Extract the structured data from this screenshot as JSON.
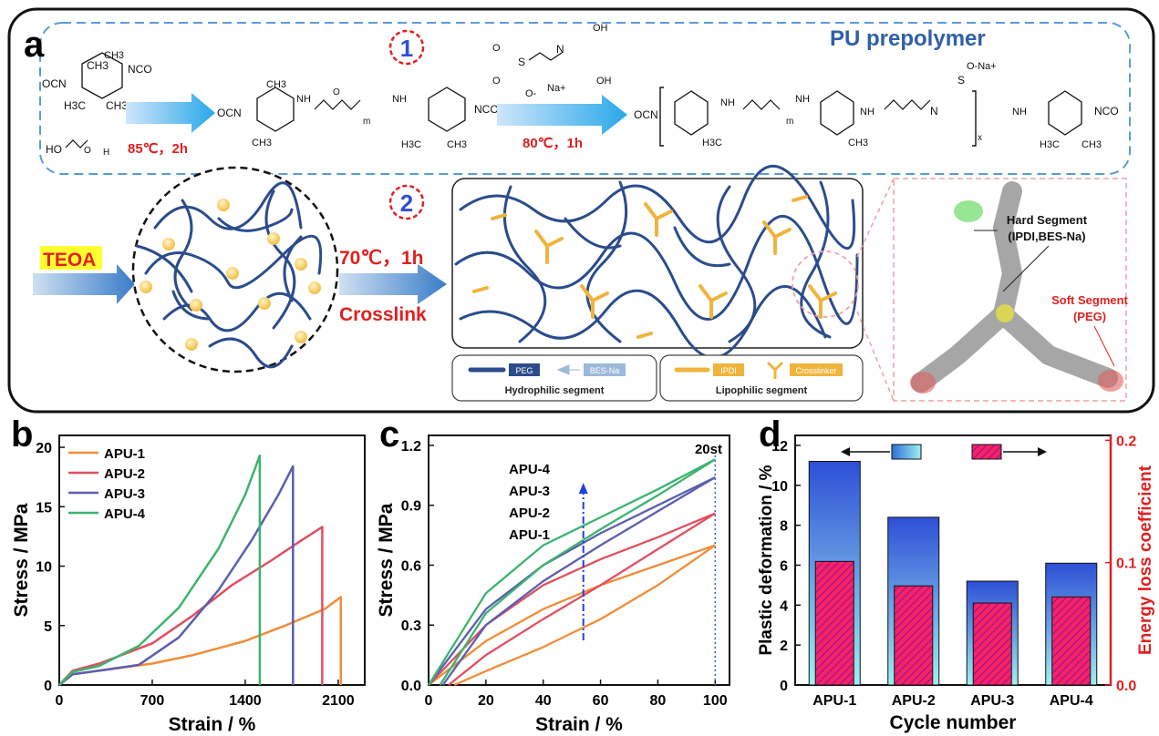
{
  "scheme": {
    "panel_label": "a",
    "step1_label": "1",
    "step2_label": "2",
    "prepolymer_title": "PU prepolymer",
    "step1_condition_a": "85℃，2h",
    "step1_condition_b": "80℃，1h",
    "teoa_label": "TEOA",
    "step2_condition": "70℃，1h",
    "crosslink_label": "Crosslink",
    "legend_peg": "PEG",
    "legend_besna": "BES-Na",
    "legend_ipdi": "IPDI",
    "legend_crosslinker": "Crosslinker",
    "hydrophilic_label": "Hydrophilic segment",
    "lipophilic_label": "Lipophilic segment",
    "hard_segment": "Hard Segment",
    "hard_segment_detail": "(IPDI,BES-Na)",
    "soft_segment": "Soft Segment",
    "soft_segment_detail": "(PEG)",
    "chem": {
      "nco": "NCO",
      "ocn": "OCN",
      "ch3": "CH3",
      "h3c": "H3C",
      "nh": "NH",
      "n": "N",
      "o": "O",
      "oh": "OH",
      "ho": "HO",
      "h": "H",
      "s": "S",
      "na": "Na+",
      "ona": "O-Na+",
      "o_minus": "O-",
      "m": "m",
      "x": "x"
    },
    "colors": {
      "peg": "#2b4c8c",
      "ipdi": "#f0b43c",
      "besna": "#9cb9d9",
      "red": "#e02020",
      "blue_title": "#2f5fa8"
    }
  },
  "chart_data": [
    {
      "panel": "b",
      "type": "line",
      "xlabel": "Strain / %",
      "ylabel": "Stress / MPa",
      "xlim": [
        0,
        2300
      ],
      "ylim": [
        0,
        21
      ],
      "xticks": [
        "0",
        "700",
        "1400",
        "2100"
      ],
      "yticks": [
        "0",
        "5",
        "10",
        "15",
        "20"
      ],
      "legend_position": "top-left",
      "series": [
        {
          "name": "APU-1",
          "color": "#f28c38",
          "x": [
            0,
            100,
            300,
            700,
            1000,
            1400,
            1700,
            2000,
            2120,
            2120
          ],
          "y": [
            0,
            0.9,
            1.2,
            1.8,
            2.5,
            3.7,
            5.0,
            6.4,
            7.4,
            0
          ]
        },
        {
          "name": "APU-2",
          "color": "#e05060",
          "x": [
            0,
            100,
            300,
            700,
            1000,
            1300,
            1600,
            1800,
            1980,
            1980
          ],
          "y": [
            0,
            1.2,
            1.8,
            3.5,
            5.8,
            8.4,
            10.5,
            12.0,
            13.3,
            0
          ]
        },
        {
          "name": "APU-3",
          "color": "#5b5fb0",
          "x": [
            0,
            100,
            300,
            600,
            900,
            1200,
            1450,
            1650,
            1760,
            1760
          ],
          "y": [
            0,
            0.9,
            1.2,
            1.7,
            4.0,
            8.0,
            12.2,
            16.0,
            18.4,
            0
          ]
        },
        {
          "name": "APU-4",
          "color": "#3cb46e",
          "x": [
            0,
            100,
            300,
            600,
            900,
            1200,
            1400,
            1510,
            1510
          ],
          "y": [
            0,
            1.1,
            1.6,
            3.3,
            6.5,
            11.5,
            16.0,
            19.3,
            0
          ]
        }
      ]
    },
    {
      "panel": "c",
      "type": "line",
      "xlabel": "Strain / %",
      "ylabel": "Stress / MPa",
      "xlim": [
        0,
        105
      ],
      "ylim": [
        0,
        1.25
      ],
      "xticks": [
        "0",
        "20",
        "40",
        "60",
        "80",
        "100"
      ],
      "yticks": [
        "0.0",
        "0.3",
        "0.6",
        "0.9",
        "1.2"
      ],
      "annotation": "20st",
      "arrow_labels": [
        "APU-4",
        "APU-3",
        "APU-2",
        "APU-1"
      ],
      "series": [
        {
          "name": "APU-1",
          "color": "#f28c38",
          "loading": {
            "x": [
              0,
              20,
              40,
              60,
              80,
              100
            ],
            "y": [
              0,
              0.22,
              0.38,
              0.5,
              0.6,
              0.7
            ]
          },
          "unloading": {
            "x": [
              100,
              80,
              60,
              40,
              20,
              9
            ],
            "y": [
              0.7,
              0.5,
              0.33,
              0.19,
              0.07,
              0
            ]
          }
        },
        {
          "name": "APU-2",
          "color": "#e05060",
          "loading": {
            "x": [
              0,
              20,
              40,
              60,
              80,
              100
            ],
            "y": [
              0,
              0.3,
              0.5,
              0.63,
              0.74,
              0.86
            ]
          },
          "unloading": {
            "x": [
              100,
              80,
              60,
              40,
              20,
              7
            ],
            "y": [
              0.86,
              0.68,
              0.5,
              0.33,
              0.15,
              0
            ]
          }
        },
        {
          "name": "APU-3",
          "color": "#5b5fb0",
          "loading": {
            "x": [
              0,
              20,
              40,
              60,
              80,
              100
            ],
            "y": [
              0,
              0.38,
              0.6,
              0.76,
              0.9,
              1.04
            ]
          },
          "unloading": {
            "x": [
              100,
              80,
              60,
              40,
              20,
              5
            ],
            "y": [
              1.04,
              0.87,
              0.7,
              0.52,
              0.3,
              0
            ]
          }
        },
        {
          "name": "APU-4",
          "color": "#3cb46e",
          "loading": {
            "x": [
              0,
              20,
              40,
              60,
              80,
              100
            ],
            "y": [
              0,
              0.46,
              0.7,
              0.84,
              0.98,
              1.13
            ]
          },
          "unloading": {
            "x": [
              100,
              80,
              60,
              40,
              20,
              4
            ],
            "y": [
              1.13,
              0.95,
              0.78,
              0.6,
              0.36,
              0
            ]
          }
        }
      ]
    },
    {
      "panel": "d",
      "type": "bar",
      "xlabel": "Cycle number",
      "ylabel": "Plastic deformation / %",
      "y2label": "Energy loss coefficient",
      "categories": [
        "APU-1",
        "APU-2",
        "APU-3",
        "APU-4"
      ],
      "ylim": [
        0,
        12.5
      ],
      "y2lim": [
        0,
        0.204
      ],
      "yticks": [
        "0",
        "2",
        "4",
        "6",
        "8",
        "10",
        "12"
      ],
      "y2ticks": [
        "0.0",
        "0.1",
        "0.2"
      ],
      "series": [
        {
          "axis": "left",
          "color": "#3c6fd8",
          "values": [
            11.2,
            8.4,
            5.2,
            6.1
          ]
        },
        {
          "axis": "right",
          "color": "#e0203c",
          "values": [
            0.101,
            0.081,
            0.067,
            0.072
          ]
        }
      ]
    }
  ]
}
